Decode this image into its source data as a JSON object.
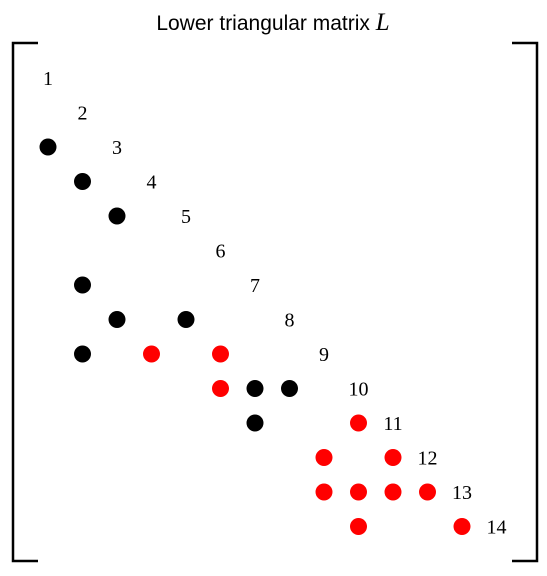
{
  "title": {
    "text": "Lower triangular matrix ",
    "variable": "L"
  },
  "matrix": {
    "size": 14,
    "diagonal_labels": [
      "1",
      "2",
      "3",
      "4",
      "5",
      "6",
      "7",
      "8",
      "9",
      "10",
      "11",
      "12",
      "13",
      "14"
    ],
    "colors": {
      "original": "#000000",
      "fill_in": "#ff0000"
    },
    "entries": [
      {
        "row": 3,
        "col": 1,
        "kind": "original"
      },
      {
        "row": 4,
        "col": 2,
        "kind": "original"
      },
      {
        "row": 5,
        "col": 3,
        "kind": "original"
      },
      {
        "row": 7,
        "col": 2,
        "kind": "original"
      },
      {
        "row": 8,
        "col": 3,
        "kind": "original"
      },
      {
        "row": 8,
        "col": 5,
        "kind": "original"
      },
      {
        "row": 9,
        "col": 2,
        "kind": "original"
      },
      {
        "row": 9,
        "col": 4,
        "kind": "fill_in"
      },
      {
        "row": 9,
        "col": 6,
        "kind": "fill_in"
      },
      {
        "row": 10,
        "col": 6,
        "kind": "fill_in"
      },
      {
        "row": 10,
        "col": 7,
        "kind": "original"
      },
      {
        "row": 10,
        "col": 8,
        "kind": "original"
      },
      {
        "row": 11,
        "col": 7,
        "kind": "original"
      },
      {
        "row": 11,
        "col": 10,
        "kind": "fill_in"
      },
      {
        "row": 12,
        "col": 9,
        "kind": "fill_in"
      },
      {
        "row": 12,
        "col": 11,
        "kind": "fill_in"
      },
      {
        "row": 13,
        "col": 9,
        "kind": "fill_in"
      },
      {
        "row": 13,
        "col": 10,
        "kind": "fill_in"
      },
      {
        "row": 13,
        "col": 11,
        "kind": "fill_in"
      },
      {
        "row": 13,
        "col": 12,
        "kind": "fill_in"
      },
      {
        "row": 14,
        "col": 10,
        "kind": "fill_in"
      },
      {
        "row": 14,
        "col": 13,
        "kind": "fill_in"
      }
    ]
  }
}
